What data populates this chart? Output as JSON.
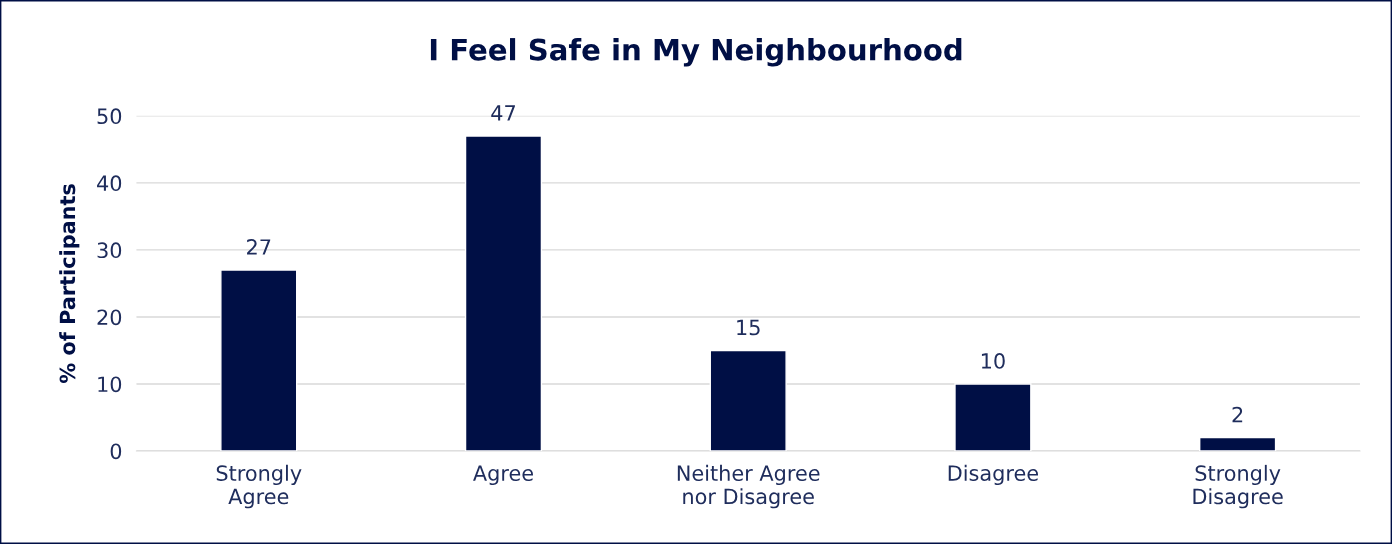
{
  "chart_data": {
    "type": "bar",
    "title": "I Feel Safe in My Neighbourhood",
    "ylabel": "% of Participants",
    "categories": [
      "Strongly\nAgree",
      "Agree",
      "Neither Agree\nnor Disagree",
      "Disagree",
      "Strongly\nDisagree"
    ],
    "values": [
      27,
      47,
      15,
      10,
      2
    ],
    "color": "#000f45",
    "ylim": [
      0,
      50
    ],
    "yticks": [
      0,
      10,
      20,
      30,
      40,
      50
    ],
    "grid": "y",
    "data_labels": true,
    "legend": false
  }
}
